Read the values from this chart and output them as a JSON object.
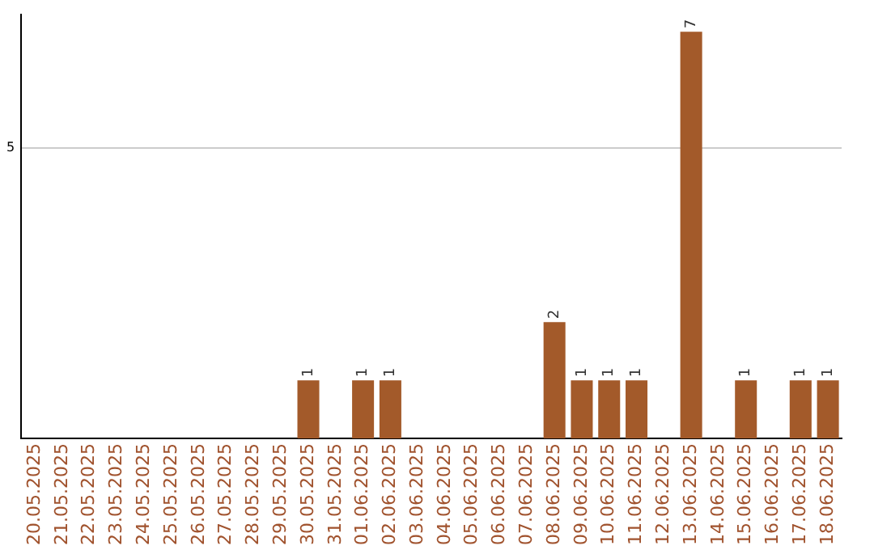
{
  "chart_data": {
    "type": "bar",
    "categories": [
      "20.05.2025",
      "21.05.2025",
      "22.05.2025",
      "23.05.2025",
      "24.05.2025",
      "25.05.2025",
      "26.05.2025",
      "27.05.2025",
      "28.05.2025",
      "29.05.2025",
      "30.05.2025",
      "31.05.2025",
      "01.06.2025",
      "02.06.2025",
      "03.06.2025",
      "04.06.2025",
      "05.06.2025",
      "06.06.2025",
      "07.06.2025",
      "08.06.2025",
      "09.06.2025",
      "10.06.2025",
      "11.06.2025",
      "12.06.2025",
      "13.06.2025",
      "14.06.2025",
      "15.06.2025",
      "16.06.2025",
      "17.06.2025",
      "18.06.2025"
    ],
    "values": [
      0,
      0,
      0,
      0,
      0,
      0,
      0,
      0,
      0,
      0,
      1,
      0,
      1,
      1,
      0,
      0,
      0,
      0,
      0,
      2,
      1,
      1,
      1,
      0,
      7,
      0,
      1,
      0,
      1,
      1
    ],
    "value_labels": [
      null,
      null,
      null,
      null,
      null,
      null,
      null,
      null,
      null,
      null,
      "1",
      null,
      "1",
      "1",
      null,
      null,
      null,
      null,
      null,
      "2",
      "1",
      "1",
      "1",
      null,
      "7",
      null,
      "1",
      null,
      "1",
      "1"
    ],
    "color": "#a35a2a",
    "ylim": [
      0,
      7.3
    ],
    "yticks": [
      5
    ],
    "grid": "y"
  }
}
